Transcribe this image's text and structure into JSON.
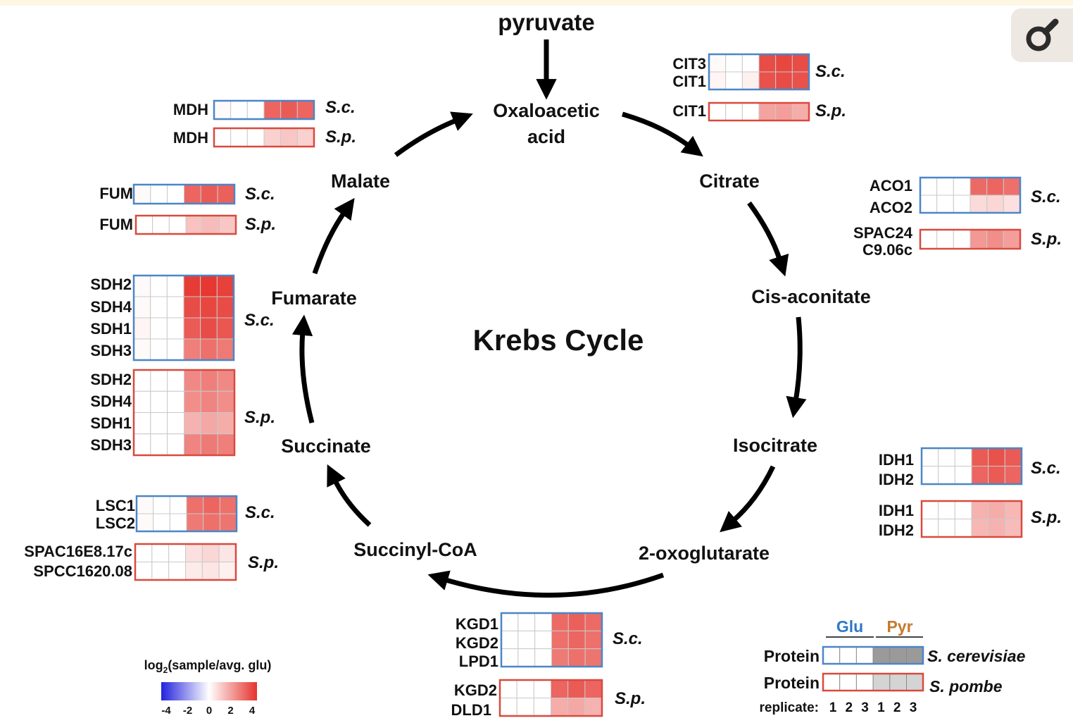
{
  "title": "Krebs Cycle",
  "input_metabolite": "pyruvate",
  "metabolites": {
    "oaa1": "Oxaloacetic",
    "oaa2": "acid",
    "citrate": "Citrate",
    "cis_aconitate": "Cis-aconitate",
    "isocitrate": "Isocitrate",
    "oxoglutarate": "2-oxoglutarate",
    "succinyl_coa": "Succinyl-CoA",
    "succinate": "Succinate",
    "fumarate": "Fumarate",
    "malate": "Malate"
  },
  "colors": {
    "sc_border": "#4a86c8",
    "sp_border": "#d84a3e",
    "neg": "#2222dd",
    "pos": "#e5322b",
    "glu_label": "#2f78c4",
    "pyr_label": "#c47a2f",
    "legend_pyr_sc": "#9a9a9a",
    "legend_pyr_sp": "#d4d4d4",
    "arrow": "#000000"
  },
  "heatmap_groups": [
    {
      "id": "cit-sc",
      "species": "S.c.",
      "genes": [
        "CIT3",
        "CIT1"
      ],
      "values": [
        [
          0.1,
          0,
          0,
          3.5,
          3.6,
          3.5
        ],
        [
          0.2,
          0,
          0.3,
          3.4,
          3.5,
          3.4
        ]
      ]
    },
    {
      "id": "cit-sp",
      "species": "S.p.",
      "genes": [
        "CIT1"
      ],
      "values": [
        [
          0,
          0,
          0,
          1.8,
          1.9,
          1.6
        ]
      ]
    },
    {
      "id": "mdh-sc",
      "species": "S.c.",
      "genes": [
        "MDH"
      ],
      "values": [
        [
          0.1,
          0,
          0,
          3.0,
          3.2,
          3.0
        ]
      ]
    },
    {
      "id": "mdh-sp",
      "species": "S.p.",
      "genes": [
        "MDH"
      ],
      "values": [
        [
          0,
          0,
          0,
          0.9,
          1.1,
          0.9
        ]
      ]
    },
    {
      "id": "aco-sc",
      "species": "S.c.",
      "genes": [
        "ACO1",
        "ACO2"
      ],
      "values": [
        [
          0,
          0,
          0,
          2.9,
          3.0,
          2.8
        ],
        [
          0,
          0,
          0,
          0.7,
          0.8,
          0.6
        ]
      ]
    },
    {
      "id": "aco-sp",
      "species": "S.p.",
      "genes": [
        "SPAC24",
        "C9.06c"
      ],
      "values": [
        [
          0,
          0,
          0,
          2.0,
          2.2,
          1.9
        ]
      ]
    },
    {
      "id": "fum-sc",
      "species": "S.c.",
      "genes": [
        "FUM"
      ],
      "values": [
        [
          0.1,
          0,
          0,
          3.0,
          3.2,
          3.1
        ]
      ]
    },
    {
      "id": "fum-sp",
      "species": "S.p.",
      "genes": [
        "FUM"
      ],
      "values": [
        [
          0,
          0,
          0,
          1.2,
          1.3,
          1.1
        ]
      ]
    },
    {
      "id": "sdh-sc",
      "species": "S.c.",
      "genes": [
        "SDH2",
        "SDH4",
        "SDH1",
        "SDH3"
      ],
      "values": [
        [
          0.1,
          0,
          0,
          3.8,
          3.9,
          3.7
        ],
        [
          0.1,
          0,
          0,
          3.5,
          3.6,
          3.5
        ],
        [
          0.2,
          0,
          0,
          3.2,
          3.5,
          3.3
        ],
        [
          0.1,
          0,
          0,
          2.5,
          2.8,
          2.6
        ]
      ]
    },
    {
      "id": "sdh-sp",
      "species": "S.p.",
      "genes": [
        "SDH2",
        "SDH4",
        "SDH1",
        "SDH3"
      ],
      "values": [
        [
          0,
          0,
          0,
          2.3,
          2.5,
          2.3
        ],
        [
          0,
          0,
          0,
          2.2,
          2.4,
          2.2
        ],
        [
          0,
          0,
          0,
          1.5,
          1.7,
          1.6
        ],
        [
          0,
          0,
          0,
          2.4,
          2.6,
          2.5
        ]
      ]
    },
    {
      "id": "idh-sc",
      "species": "S.c.",
      "genes": [
        "IDH1",
        "IDH2"
      ],
      "values": [
        [
          0,
          0,
          0,
          3.2,
          3.4,
          3.2
        ],
        [
          0,
          0,
          0,
          3.0,
          3.2,
          3.0
        ]
      ]
    },
    {
      "id": "idh-sp",
      "species": "S.p.",
      "genes": [
        "IDH1",
        "IDH2"
      ],
      "values": [
        [
          0,
          0,
          0,
          1.5,
          1.6,
          1.4
        ],
        [
          0,
          0,
          0,
          1.4,
          1.5,
          1.3
        ]
      ]
    },
    {
      "id": "lsc-sc",
      "species": "S.c.",
      "genes": [
        "LSC1",
        "LSC2"
      ],
      "values": [
        [
          0.1,
          0,
          0,
          2.8,
          3.0,
          2.8
        ],
        [
          0.1,
          0,
          0,
          2.6,
          2.8,
          2.7
        ]
      ]
    },
    {
      "id": "lsc-sp",
      "species": "S.p.",
      "genes": [
        "SPAC16E8.17c",
        "SPCC1620.08"
      ],
      "values": [
        [
          0,
          0,
          0,
          0.6,
          0.8,
          0.5
        ],
        [
          0,
          0,
          0,
          0.4,
          0.5,
          0.3
        ]
      ]
    },
    {
      "id": "kgd-sc",
      "species": "S.c.",
      "genes": [
        "KGD1",
        "KGD2",
        "LPD1"
      ],
      "values": [
        [
          0,
          0,
          0,
          2.9,
          3.1,
          2.9
        ],
        [
          0,
          0,
          0,
          2.8,
          3.0,
          2.8
        ],
        [
          0,
          0,
          0,
          2.6,
          2.8,
          2.7
        ]
      ]
    },
    {
      "id": "kgd-sp",
      "species": "S.p.",
      "genes": [
        "KGD2",
        "DLD1"
      ],
      "values": [
        [
          0,
          0,
          0,
          3.0,
          3.2,
          3.0
        ],
        [
          0,
          0,
          0,
          1.6,
          1.7,
          1.5
        ]
      ]
    }
  ],
  "colorbar": {
    "label_prefix": "log",
    "label_sub": "2",
    "label_suffix": "(sample/avg. glu)",
    "ticks": [
      "-4",
      "-2",
      "0",
      "2",
      "4"
    ],
    "range": [
      -4,
      4
    ]
  },
  "legend": {
    "glu": "Glu",
    "pyr": "Pyr",
    "row_label": "Protein",
    "sc_name": "S. cerevisiae",
    "sp_name": "S. pombe",
    "replicate_label": "replicate:",
    "replicates": [
      "1",
      "2",
      "3",
      "1",
      "2",
      "3"
    ]
  },
  "zoom_icon": "magnifier-icon"
}
